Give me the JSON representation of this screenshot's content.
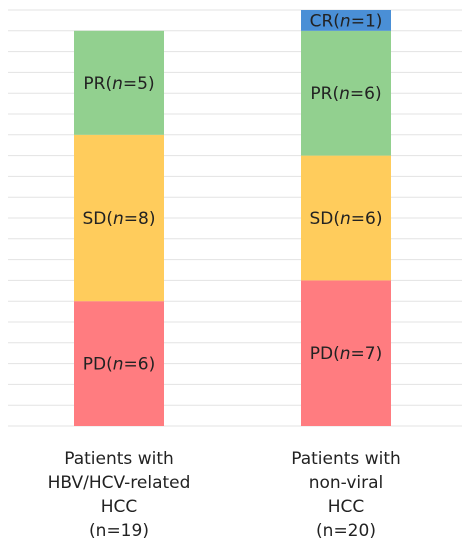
{
  "chart_data": {
    "type": "bar",
    "stacked": true,
    "grid": true,
    "categories": [
      [
        "Patients with",
        "HBV/HCV-related",
        "HCC",
        "(n=19)"
      ],
      [
        "Patients with",
        "non-viral",
        "HCC",
        "(n=20)"
      ]
    ],
    "series": [
      {
        "color": "#ff7c80",
        "values": [
          6,
          7
        ],
        "labels": [
          [
            "PD(",
            "n",
            "=6)"
          ],
          [
            "PD(",
            "n",
            "=7)"
          ]
        ]
      },
      {
        "color": "#ffcc5c",
        "values": [
          8,
          6
        ],
        "labels": [
          [
            "SD(",
            "n",
            "=8)"
          ],
          [
            "SD(",
            "n",
            "=6)"
          ]
        ]
      },
      {
        "color": "#92d08f",
        "values": [
          5,
          6
        ],
        "labels": [
          [
            "PR(",
            "n",
            "=5)"
          ],
          [
            "PR(",
            "n",
            "=6)"
          ]
        ]
      },
      {
        "color": "#4a8fd6",
        "values": [
          0,
          1
        ],
        "labels": [
          [],
          [
            "CR(",
            "n",
            "=1)"
          ]
        ]
      }
    ],
    "ylim": [
      0,
      20
    ]
  }
}
